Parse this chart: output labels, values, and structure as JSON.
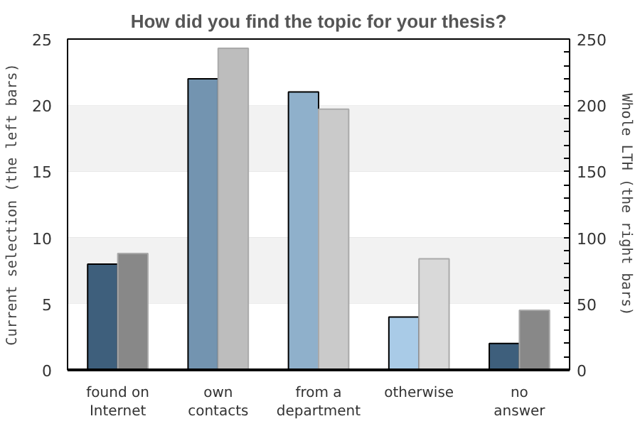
{
  "chart_data": {
    "type": "bar",
    "title": "How did you find the topic for your thesis?",
    "ylabel": "Current selection (the left bars)",
    "y2label": "Whole LTH (the right bars)",
    "categories": [
      "found on\nInternet",
      "own\ncontacts",
      "from a\ndepartment",
      "otherwise",
      "no\nanswer"
    ],
    "series": [
      {
        "axis": "y",
        "colors": [
          "#3e5f7c",
          "#7394b0",
          "#8fb0cb",
          "#a9cbe7",
          "#3e5f7c"
        ],
        "values": [
          8,
          22,
          21,
          4,
          2
        ]
      },
      {
        "axis": "y2",
        "colors": [
          "#888888",
          "#bdbdbd",
          "#cacaca",
          "#d9d9d9",
          "#888888"
        ],
        "values": [
          88,
          243,
          197,
          84,
          45
        ]
      }
    ],
    "ylim": [
      0,
      25
    ],
    "yticks": [
      0,
      5,
      10,
      15,
      20,
      25
    ],
    "y2lim": [
      0,
      250
    ],
    "y2ticks": [
      0,
      {
        "value": 10,
        "label": null
      },
      {
        "value": 20,
        "label": null
      },
      {
        "value": 30,
        "label": null
      },
      {
        "value": 40,
        "label": null
      },
      50,
      {
        "value": 60,
        "label": null
      },
      {
        "value": 70,
        "label": null
      },
      {
        "value": 80,
        "label": null
      },
      {
        "value": 90,
        "label": null
      },
      100,
      {
        "value": 110,
        "label": null
      },
      {
        "value": 120,
        "label": null
      },
      {
        "value": 130,
        "label": null
      },
      {
        "value": 140,
        "label": null
      },
      150,
      {
        "value": 160,
        "label": null
      },
      {
        "value": 170,
        "label": null
      },
      {
        "value": 180,
        "label": null
      },
      {
        "value": 190,
        "label": null
      },
      200,
      {
        "value": 210,
        "label": null
      },
      {
        "value": 220,
        "label": null
      },
      {
        "value": 230,
        "label": null
      },
      {
        "value": 240,
        "label": null
      },
      250
    ],
    "bands": [
      {
        "axis": "y",
        "from": 5,
        "to": 10,
        "color": "#f2f2f2"
      },
      {
        "axis": "y",
        "from": 15,
        "to": 20,
        "color": "#f2f2f2"
      }
    ],
    "grid": "y"
  }
}
